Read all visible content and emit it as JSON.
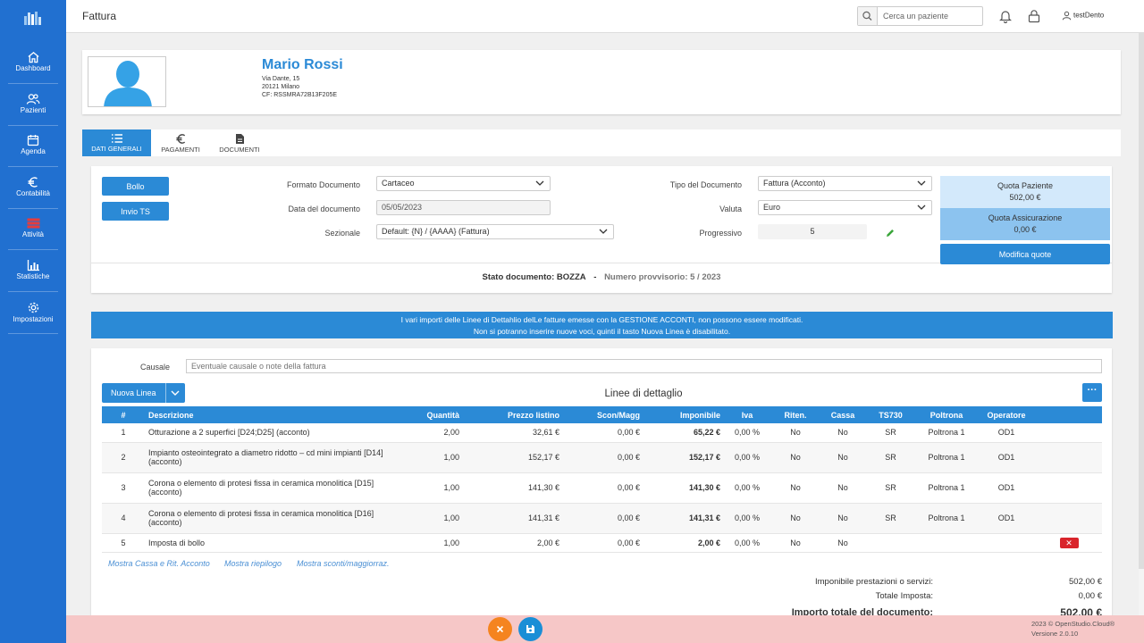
{
  "page": {
    "title": "Fattura"
  },
  "topbar": {
    "search_placeholder": "Cerca un paziente",
    "username": "testDento"
  },
  "sidebar": {
    "items": [
      {
        "label": "Dashboard",
        "icon": "home-icon"
      },
      {
        "label": "Pazienti",
        "icon": "users-icon"
      },
      {
        "label": "Agenda",
        "icon": "calendar-icon"
      },
      {
        "label": "Contabilità",
        "icon": "euro-icon"
      },
      {
        "label": "Attività",
        "icon": "list-icon"
      },
      {
        "label": "Statistiche",
        "icon": "bar-chart-icon"
      },
      {
        "label": "Impostazioni",
        "icon": "gear-icon"
      }
    ]
  },
  "patient": {
    "name": "Mario Rossi",
    "address": "Via Dante, 15",
    "city": "20121 Milano",
    "cf": "CF: RSSMRA72B13F205E"
  },
  "tabs": [
    {
      "label": "DATI GENERALI",
      "active": true
    },
    {
      "label": "PAGAMENTI",
      "active": false
    },
    {
      "label": "DOCUMENTI",
      "active": false
    }
  ],
  "actions": {
    "bollo": "Bollo",
    "invio_ts": "Invio TS",
    "modifica_quote": "Modifica quote"
  },
  "form": {
    "formato_label": "Formato Documento",
    "formato_value": "Cartaceo",
    "data_label": "Data del documento",
    "data_value": "05/05/2023",
    "sezionale_label": "Sezionale",
    "sezionale_value": "Default: {N} / {AAAA} (Fattura)",
    "tipo_label": "Tipo del Documento",
    "tipo_value": "Fattura (Acconto)",
    "valuta_label": "Valuta",
    "valuta_value": "Euro",
    "progressivo_label": "Progressivo",
    "progressivo_value": "5"
  },
  "quota": {
    "paziente_label": "Quota Paziente",
    "paziente_value": "502,00 €",
    "assicurazione_label": "Quota Assicurazione",
    "assicurazione_value": "0,00 €"
  },
  "status": {
    "stato": "Stato documento: BOZZA",
    "sep": "-",
    "numero": "Numero provvisorio: 5 / 2023"
  },
  "alert": {
    "line1": "I vari importi delle Linee di Dettahlio delLe fatture emesse con la GESTIONE ACCONTI, non possono essere modificati.",
    "line2": "Non si potranno inserire nuove voci, quinti il tasto Nuova Linea è disabilitato."
  },
  "causale": {
    "label": "Causale",
    "placeholder": "Eventuale causale o note della fattura"
  },
  "details": {
    "title": "Linee di dettaglio",
    "new_line": "Nuova Linea",
    "more": "···"
  },
  "table": {
    "headers": [
      "#",
      "Descrizione",
      "Quantità",
      "Prezzo listino",
      "Scon/Magg",
      "Imponibile",
      "Iva",
      "Riten.",
      "Cassa",
      "TS730",
      "Poltrona",
      "Operatore"
    ],
    "rows": [
      [
        "1",
        "Otturazione a 2 superfici [D24;D25] (acconto)",
        "2,00",
        "32,61 €",
        "0,00 €",
        "65,22 €",
        "0,00 %",
        "No",
        "No",
        "SR",
        "Poltrona 1",
        "OD1"
      ],
      [
        "2",
        "Impianto osteointegrato a diametro ridotto – cd mini impianti [D14] (acconto)",
        "1,00",
        "152,17 €",
        "0,00 €",
        "152,17 €",
        "0,00 %",
        "No",
        "No",
        "SR",
        "Poltrona 1",
        "OD1"
      ],
      [
        "3",
        "Corona o elemento di protesi fissa in ceramica monolitica [D15] (acconto)",
        "1,00",
        "141,30 €",
        "0,00 €",
        "141,30 €",
        "0,00 %",
        "No",
        "No",
        "SR",
        "Poltrona 1",
        "OD1"
      ],
      [
        "4",
        "Corona o elemento di protesi fissa in ceramica monolitica [D16] (acconto)",
        "1,00",
        "141,31 €",
        "0,00 €",
        "141,31 €",
        "0,00 %",
        "No",
        "No",
        "SR",
        "Poltrona 1",
        "OD1"
      ],
      [
        "5",
        "Imposta di bollo",
        "1,00",
        "2,00 €",
        "0,00 €",
        "2,00 €",
        "0,00 %",
        "No",
        "No",
        "",
        "",
        ""
      ]
    ]
  },
  "links": [
    "Mostra Cassa e Rit. Acconto",
    "Mostra riepilogo",
    "Mostra sconti/maggiorraz."
  ],
  "totals": {
    "imponibile_label": "Imponibile prestazioni o servizi:",
    "imponibile_value": "502,00 €",
    "imposta_label": "Totale Imposta:",
    "imposta_value": "0,00 €",
    "totale_label": "Importo totale del documento:",
    "totale_value": "502,00 €"
  },
  "footer": {
    "copyright": "2023 © OpenStudio.Cloud®",
    "version": "Versione 2.0.10"
  },
  "colors": {
    "primary": "#2b8ad6",
    "sidebar": "#2170d0",
    "danger": "#d9242b",
    "cancel": "#f5841f",
    "save": "#1a8ed6",
    "footer": "#f6c7c7"
  }
}
